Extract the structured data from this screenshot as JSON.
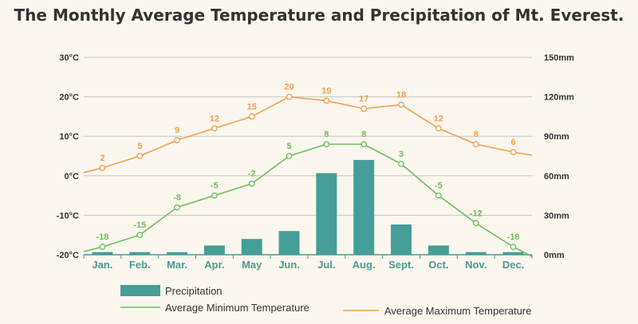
{
  "title": "The Monthly Average Temperature and Precipitation of Mt. Everest.",
  "colors": {
    "bar": "#469e98",
    "min_line": "#6dbf5a",
    "max_line": "#f0a050",
    "axis_label": "#4a9a94"
  },
  "legend": {
    "precipitation": "Precipitation",
    "min_temp": "Average Minimum Temperature",
    "max_temp": "Average Maximum Temperature"
  },
  "chart_data": {
    "type": "bar+line",
    "categories": [
      "Jan.",
      "Feb.",
      "Mar.",
      "Apr.",
      "May",
      "Jun.",
      "Jul.",
      "Aug.",
      "Sept.",
      "Oct.",
      "Nov.",
      "Dec."
    ],
    "left_axis": {
      "ylim": [
        -20,
        30
      ],
      "ticks": [
        "-20°C",
        "-10°C",
        "0°C",
        "10°C",
        "20°C",
        "30°C"
      ]
    },
    "right_axis": {
      "ylim": [
        0,
        150
      ],
      "ticks": [
        "0mm",
        "30mm",
        "60mm",
        "90mm",
        "120mm",
        "150mm"
      ]
    },
    "series": [
      {
        "name": "Precipitation",
        "type": "bar",
        "axis": "right",
        "values": [
          2,
          2,
          2,
          7,
          12,
          18,
          62,
          72,
          23,
          7,
          2,
          2
        ]
      },
      {
        "name": "Average Minimum Temperature",
        "type": "line",
        "axis": "left",
        "values": [
          -18,
          -15,
          -8,
          -5,
          -2,
          5,
          8,
          8,
          3,
          -5,
          -12,
          -18
        ],
        "labels": [
          "-18",
          "-15",
          "-8",
          "-5",
          "-2",
          "5",
          "8",
          "8",
          "3",
          "-5",
          "-12",
          "-18"
        ]
      },
      {
        "name": "Average Maximum Temperature",
        "type": "line",
        "axis": "left",
        "values": [
          2,
          5,
          9,
          12,
          15,
          20,
          19,
          17,
          18,
          12,
          8,
          6
        ],
        "labels": [
          "2",
          "5",
          "9",
          "12",
          "15",
          "20",
          "19",
          "17",
          "18",
          "12",
          "8",
          "6"
        ]
      }
    ],
    "grid": true,
    "legend_position": "bottom"
  }
}
